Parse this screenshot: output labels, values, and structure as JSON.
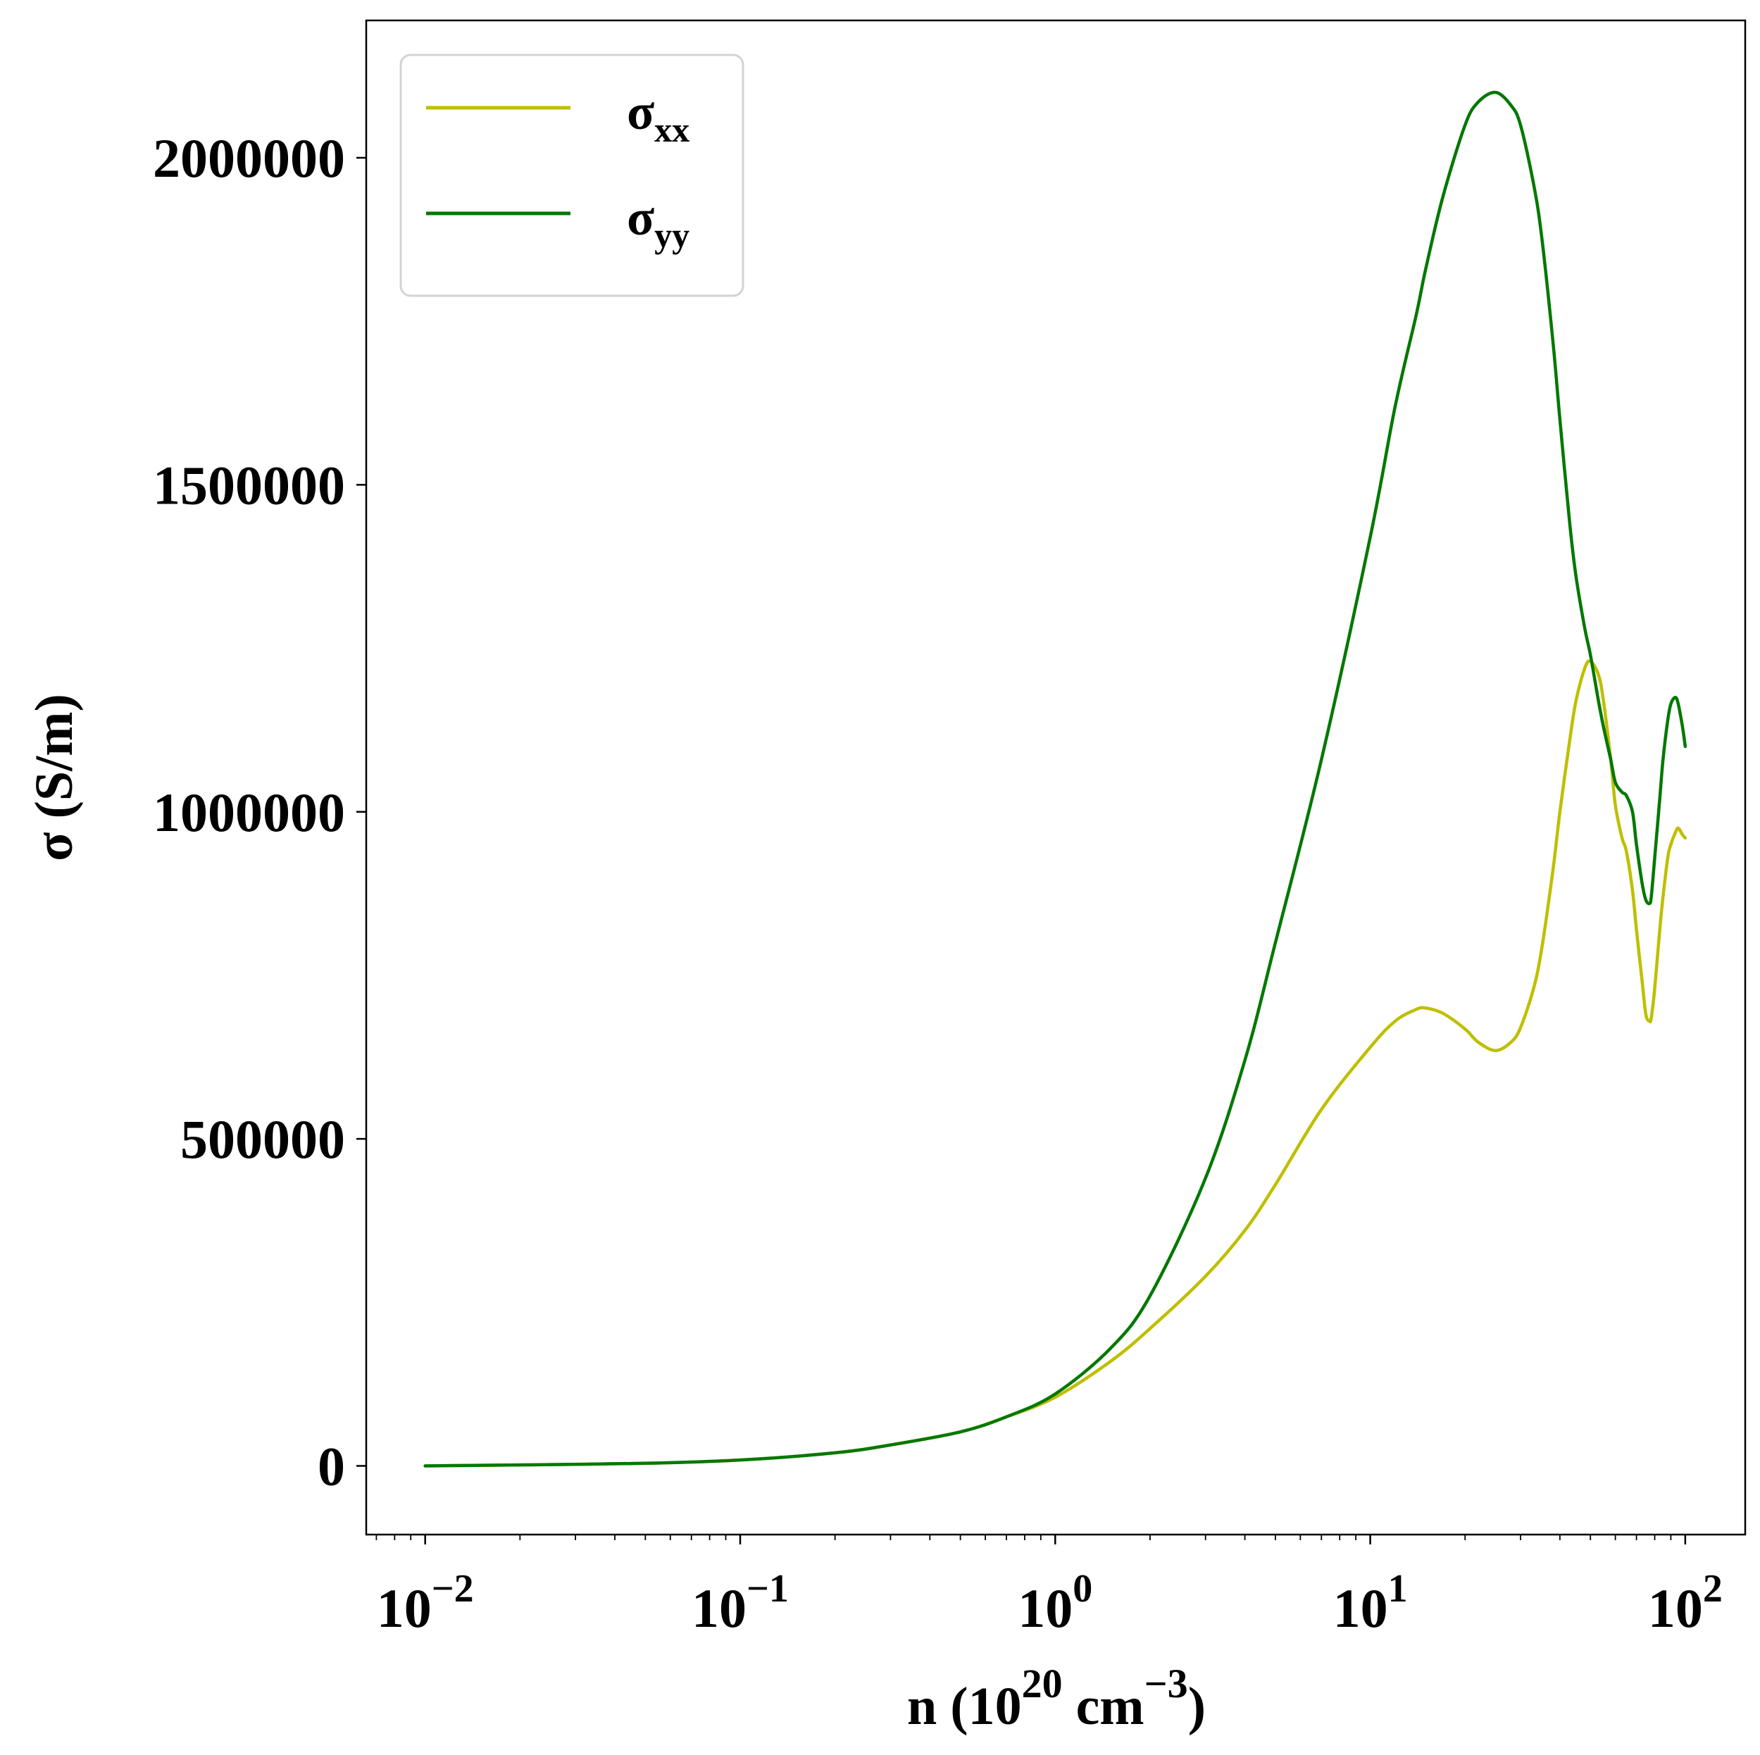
{
  "chart_data": {
    "type": "line",
    "x_scale": "log",
    "xlabel": {
      "base": "n (10",
      "exp1": "20",
      "mid": " cm",
      "exp2": "−3",
      "end": ")"
    },
    "ylabel": "σ (S/m)",
    "xlim": [
      0.0065,
      155
    ],
    "ylim": [
      -105000,
      2210000
    ],
    "x_ticks": [
      {
        "value": 0.01,
        "base": "10",
        "exp": "−2"
      },
      {
        "value": 0.1,
        "base": "10",
        "exp": "−1"
      },
      {
        "value": 1,
        "base": "10",
        "exp": "0"
      },
      {
        "value": 10,
        "base": "10",
        "exp": "1"
      },
      {
        "value": 100,
        "base": "10",
        "exp": "2"
      }
    ],
    "y_ticks": [
      {
        "value": 0,
        "label": "0"
      },
      {
        "value": 500000,
        "label": "500000"
      },
      {
        "value": 1000000,
        "label": "1000000"
      },
      {
        "value": 1500000,
        "label": "1500000"
      },
      {
        "value": 2000000,
        "label": "2000000"
      }
    ],
    "grid": false,
    "legend_position": "top-left",
    "series": [
      {
        "name": "σ",
        "subscript": "xx",
        "color": "#bfbf00",
        "x": [
          0.01,
          0.02,
          0.05,
          0.1,
          0.2,
          0.3,
          0.5,
          0.7,
          1.0,
          1.5,
          2.0,
          3.0,
          4.0,
          5.0,
          7.0,
          10,
          12,
          14,
          15,
          17,
          20,
          22,
          25,
          28,
          30,
          33,
          35,
          38,
          40,
          43,
          45,
          48,
          50,
          53,
          55,
          58,
          60,
          63,
          65,
          68,
          70,
          73,
          75,
          77,
          78,
          80,
          83,
          85,
          88,
          90,
          93,
          95,
          98,
          100
        ],
        "y": [
          0,
          1500,
          4000,
          9000,
          20000,
          32000,
          52000,
          75000,
          105000,
          160000,
          210000,
          290000,
          360000,
          430000,
          545000,
          640000,
          680000,
          698000,
          700000,
          692000,
          668000,
          648000,
          635000,
          648000,
          670000,
          730000,
          790000,
          910000,
          1000000,
          1110000,
          1170000,
          1220000,
          1230000,
          1210000,
          1170000,
          1080000,
          1010000,
          960000,
          940000,
          880000,
          820000,
          740000,
          690000,
          680000,
          685000,
          730000,
          820000,
          870000,
          930000,
          950000,
          968000,
          975000,
          965000,
          960000
        ]
      },
      {
        "name": "σ",
        "subscript": "yy",
        "color": "#007800",
        "x": [
          0.01,
          0.02,
          0.05,
          0.1,
          0.2,
          0.3,
          0.5,
          0.7,
          1.0,
          1.5,
          2.0,
          3.0,
          4.0,
          5.0,
          7.0,
          10,
          12,
          14,
          15,
          17,
          20,
          22,
          25,
          28,
          30,
          33,
          35,
          38,
          40,
          43,
          45,
          48,
          50,
          53,
          55,
          58,
          60,
          63,
          65,
          68,
          70,
          73,
          75,
          77,
          78,
          80,
          83,
          85,
          88,
          90,
          93,
          95,
          98,
          100
        ],
        "y": [
          0,
          1500,
          4000,
          9000,
          20000,
          32000,
          52000,
          75000,
          110000,
          180000,
          260000,
          440000,
          620000,
          800000,
          1080000,
          1420000,
          1620000,
          1760000,
          1830000,
          1940000,
          2050000,
          2085000,
          2100000,
          2080000,
          2050000,
          1960000,
          1880000,
          1720000,
          1600000,
          1440000,
          1360000,
          1280000,
          1240000,
          1170000,
          1130000,
          1080000,
          1045000,
          1030000,
          1025000,
          1000000,
          950000,
          890000,
          865000,
          860000,
          870000,
          930000,
          1020000,
          1080000,
          1140000,
          1165000,
          1175000,
          1165000,
          1130000,
          1100000
        ]
      }
    ]
  }
}
